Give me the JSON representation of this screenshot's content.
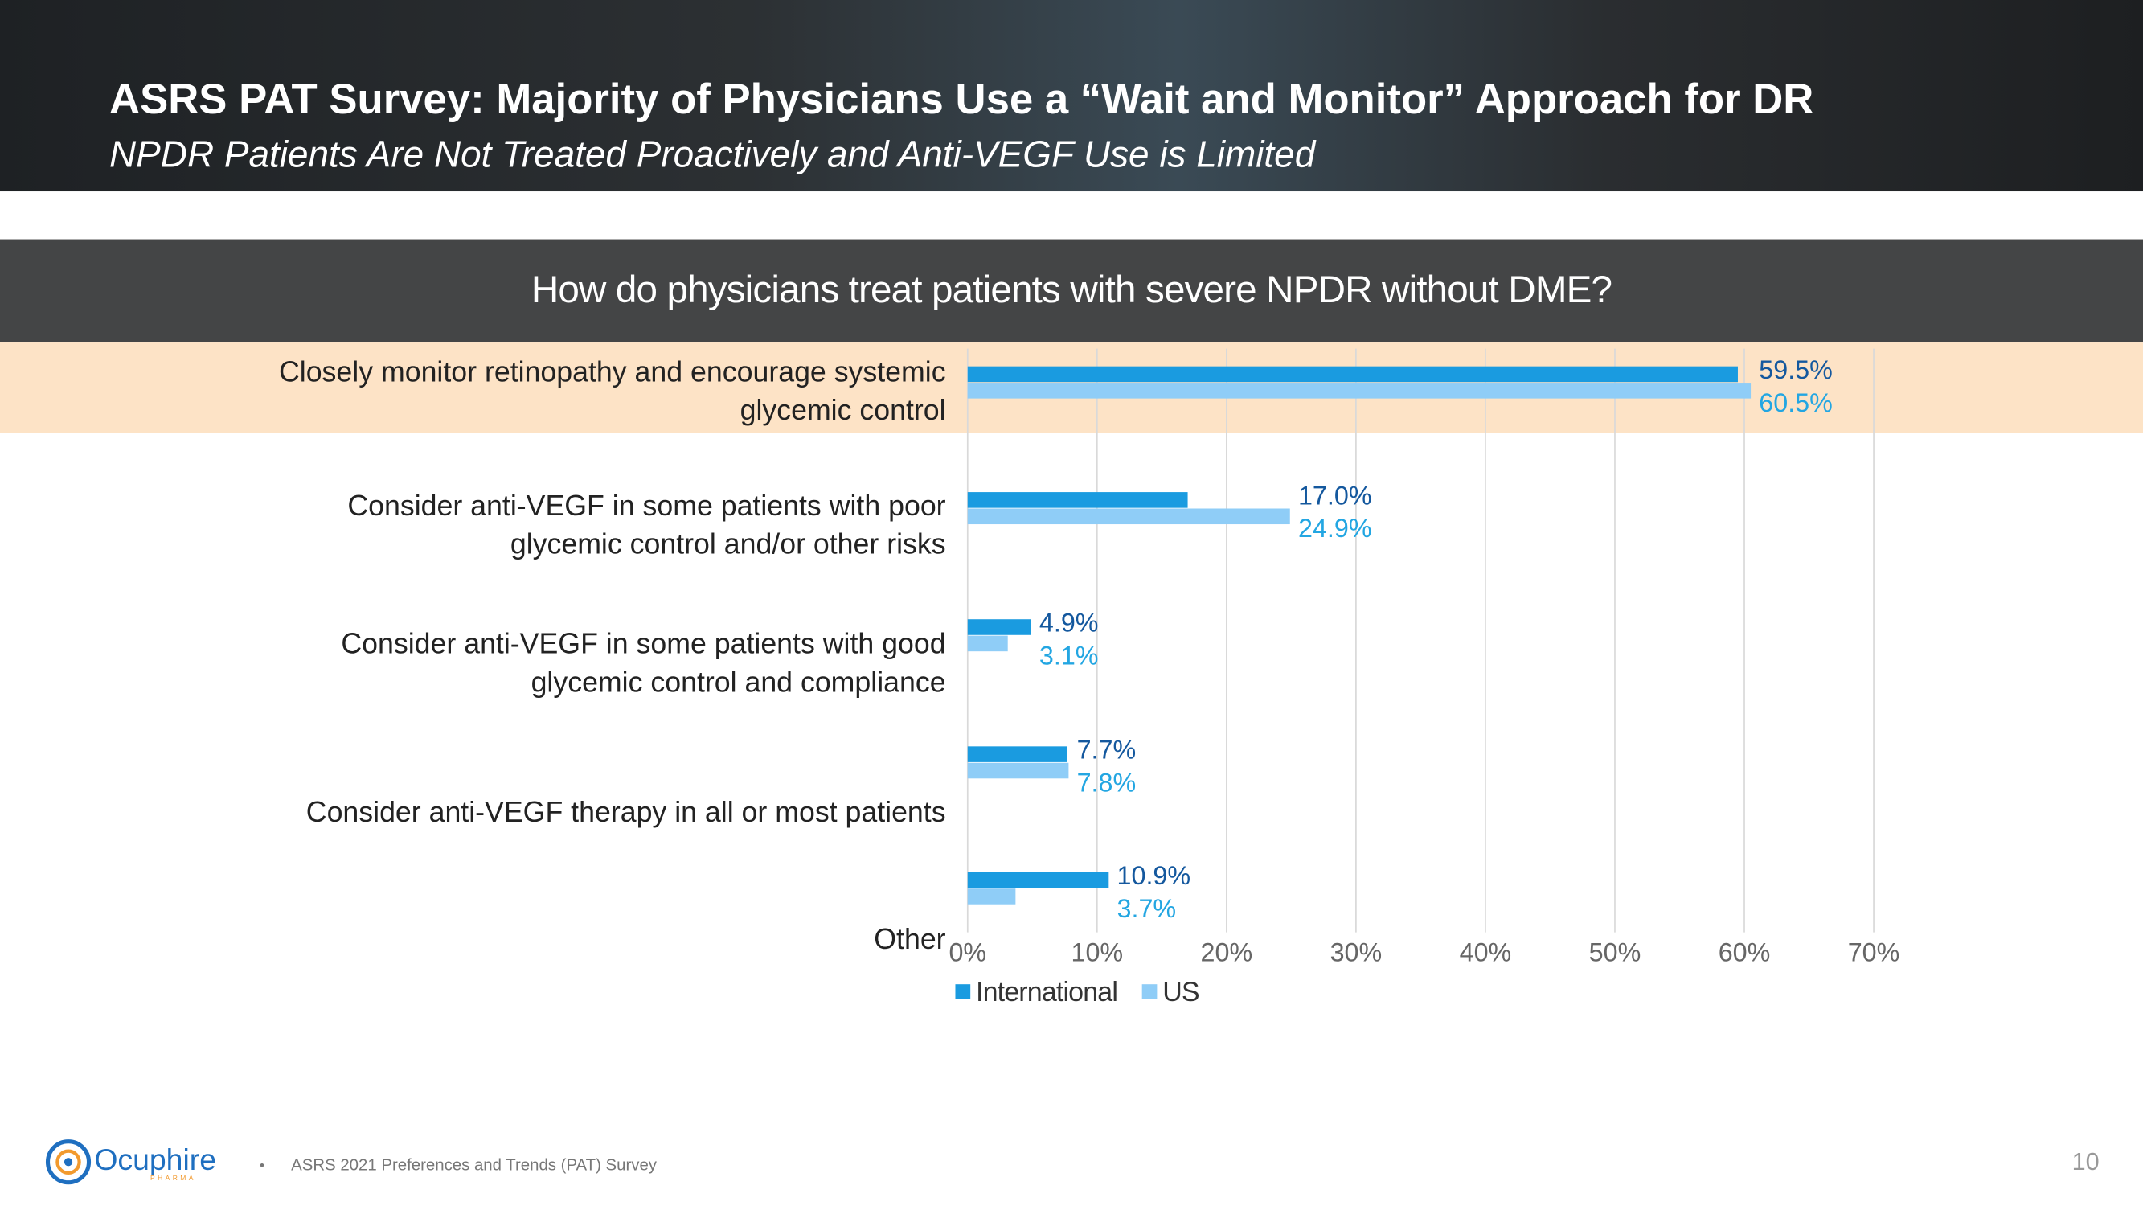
{
  "header": {
    "title": "ASRS PAT Survey: Majority of Physicians Use a “Wait and Monitor” Approach for DR",
    "subtitle": "NPDR Patients Are Not Treated Proactively and Anti-VEGF Use is Limited"
  },
  "chart_data": {
    "type": "bar",
    "orientation": "horizontal",
    "title": "How do physicians treat patients with severe NPDR without DME?",
    "categories": [
      "Closely monitor retinopathy and encourage systemic glycemic control",
      "Consider anti-VEGF in some patients with poor glycemic control and/or other risks",
      "Consider anti-VEGF in some patients with good glycemic control and compliance",
      "Consider anti-VEGF therapy in all or most patients",
      "Other"
    ],
    "series": [
      {
        "name": "International",
        "color": "#1a9be0",
        "label_color": "#14589e",
        "values": [
          59.5,
          17.0,
          4.9,
          7.7,
          10.9
        ],
        "value_labels": [
          "59.5%",
          "17.0%",
          "4.9%",
          "7.7%",
          "10.9%"
        ]
      },
      {
        "name": "US",
        "color": "#8fcdf7",
        "label_color": "#23a6e2",
        "values": [
          60.5,
          24.9,
          3.1,
          7.8,
          3.7
        ],
        "value_labels": [
          "60.5%",
          "24.9%",
          "3.1%",
          "7.8%",
          "3.7%"
        ]
      }
    ],
    "xlim": [
      0,
      70
    ],
    "xticks": [
      {
        "value": 0,
        "label": "0%"
      },
      {
        "value": 10,
        "label": "10%"
      },
      {
        "value": 20,
        "label": "20%"
      },
      {
        "value": 30,
        "label": "30%"
      },
      {
        "value": 40,
        "label": "40%"
      },
      {
        "value": 50,
        "label": "50%"
      },
      {
        "value": 60,
        "label": "60%"
      },
      {
        "value": 70,
        "label": "70%"
      }
    ],
    "grid": true,
    "legend": "bottom",
    "highlight_color": "#fde3c6"
  },
  "footer": {
    "logo": "Ocuphire",
    "logo_sub": "PHARMA",
    "bullet": "•",
    "source": "ASRS 2021 Preferences and Trends (PAT) Survey",
    "page": "10"
  }
}
